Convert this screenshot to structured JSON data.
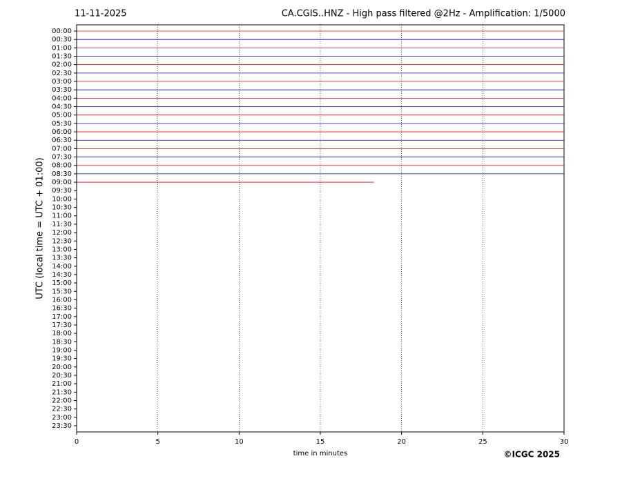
{
  "chart_data": {
    "type": "helicorder",
    "title": "11-11-2025",
    "subtitle": "CA.CGIS..HNZ - High pass filtered @2Hz - Amplification: 1/5000",
    "xlabel": "time in minutes",
    "ylabel": "UTC (local time = UTC + 01:00)",
    "credit": "©ICGC 2025",
    "xlim": [
      0,
      30
    ],
    "xticks": [
      0,
      5,
      10,
      15,
      20,
      25,
      30
    ],
    "grid": true,
    "colors": [
      "#ff0000",
      "#0000ff"
    ],
    "categories": [
      "00:00",
      "00:30",
      "01:00",
      "01:30",
      "02:00",
      "02:30",
      "03:00",
      "03:30",
      "04:00",
      "04:30",
      "05:00",
      "05:30",
      "06:00",
      "06:30",
      "07:00",
      "07:30",
      "08:00",
      "08:30",
      "09:00",
      "09:30",
      "10:00",
      "10:30",
      "11:00",
      "11:30",
      "12:00",
      "12:30",
      "13:00",
      "13:30",
      "14:00",
      "14:30",
      "15:00",
      "15:30",
      "16:00",
      "16:30",
      "17:00",
      "17:30",
      "18:00",
      "18:30",
      "19:00",
      "19:30",
      "20:00",
      "20:30",
      "21:00",
      "21:30",
      "22:00",
      "22:30",
      "23:00",
      "23:30"
    ],
    "values": [
      30,
      30,
      30,
      30,
      30,
      30,
      30,
      30,
      30,
      30,
      30,
      30,
      30,
      30,
      30,
      30,
      30,
      30,
      18.3,
      null,
      null,
      null,
      null,
      null,
      null,
      null,
      null,
      null,
      null,
      null,
      null,
      null,
      null,
      null,
      null,
      null,
      null,
      null,
      null,
      null,
      null,
      null,
      null,
      null,
      null,
      null,
      null,
      null
    ]
  }
}
